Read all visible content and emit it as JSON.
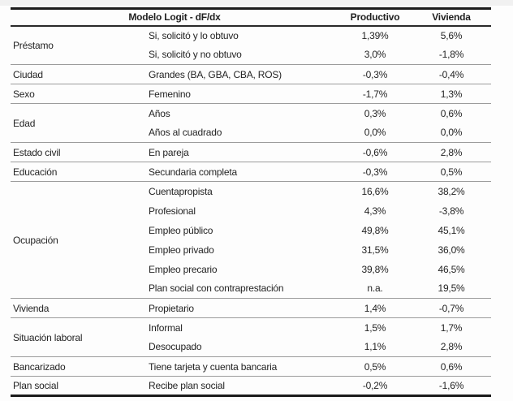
{
  "table": {
    "header": {
      "model_label": "Modelo Logit - dF/dx",
      "col_productivo": "Productivo",
      "col_vivienda": "Vivienda"
    },
    "groups": [
      {
        "category": "Préstamo",
        "rows": [
          {
            "desc": "Si, solicitó y lo obtuvo",
            "productivo": "1,39%",
            "vivienda": "5,6%"
          },
          {
            "desc": "Si, solicitó y no obtuvo",
            "productivo": "3,0%",
            "vivienda": "-1,8%"
          }
        ]
      },
      {
        "category": "Ciudad",
        "rows": [
          {
            "desc": "Grandes (BA, GBA, CBA, ROS)",
            "productivo": "-0,3%",
            "vivienda": "-0,4%"
          }
        ]
      },
      {
        "category": "Sexo",
        "rows": [
          {
            "desc": "Femenino",
            "productivo": "-1,7%",
            "vivienda": "1,3%"
          }
        ]
      },
      {
        "category": "Edad",
        "rows": [
          {
            "desc": "Años",
            "productivo": "0,3%",
            "vivienda": "0,6%"
          },
          {
            "desc": "Años al cuadrado",
            "productivo": "0,0%",
            "vivienda": "0,0%"
          }
        ]
      },
      {
        "category": "Estado civil",
        "rows": [
          {
            "desc": "En pareja",
            "productivo": "-0,6%",
            "vivienda": "2,8%"
          }
        ]
      },
      {
        "category": "Educación",
        "rows": [
          {
            "desc": "Secundaria completa",
            "productivo": "-0,3%",
            "vivienda": "0,5%"
          }
        ]
      },
      {
        "category": "Ocupación",
        "rows": [
          {
            "desc": "Cuentapropista",
            "productivo": "16,6%",
            "vivienda": "38,2%"
          },
          {
            "desc": "Profesional",
            "productivo": "4,3%",
            "vivienda": "-3,8%"
          },
          {
            "desc": "Empleo público",
            "productivo": "49,8%",
            "vivienda": "45,1%"
          },
          {
            "desc": "Empleo privado",
            "productivo": "31,5%",
            "vivienda": "36,0%"
          },
          {
            "desc": "Empleo precario",
            "productivo": "39,8%",
            "vivienda": "46,5%"
          },
          {
            "desc": "Plan social con contraprestación",
            "productivo": "n.a.",
            "vivienda": "19,5%"
          }
        ]
      },
      {
        "category": "Vivienda",
        "rows": [
          {
            "desc": "Propietario",
            "productivo": "1,4%",
            "vivienda": "-0,7%"
          }
        ]
      },
      {
        "category": "Situación laboral",
        "rows": [
          {
            "desc": "Informal",
            "productivo": "1,5%",
            "vivienda": "1,7%"
          },
          {
            "desc": "Desocupado",
            "productivo": "1,1%",
            "vivienda": "2,8%"
          }
        ]
      },
      {
        "category": "Bancarizado",
        "rows": [
          {
            "desc": "Tiene tarjeta y cuenta bancaria",
            "productivo": "0,5%",
            "vivienda": "0,6%"
          }
        ]
      },
      {
        "category": "Plan social",
        "rows": [
          {
            "desc": "Recibe plan social",
            "productivo": "-0,2%",
            "vivienda": "-1,6%"
          }
        ]
      }
    ]
  }
}
